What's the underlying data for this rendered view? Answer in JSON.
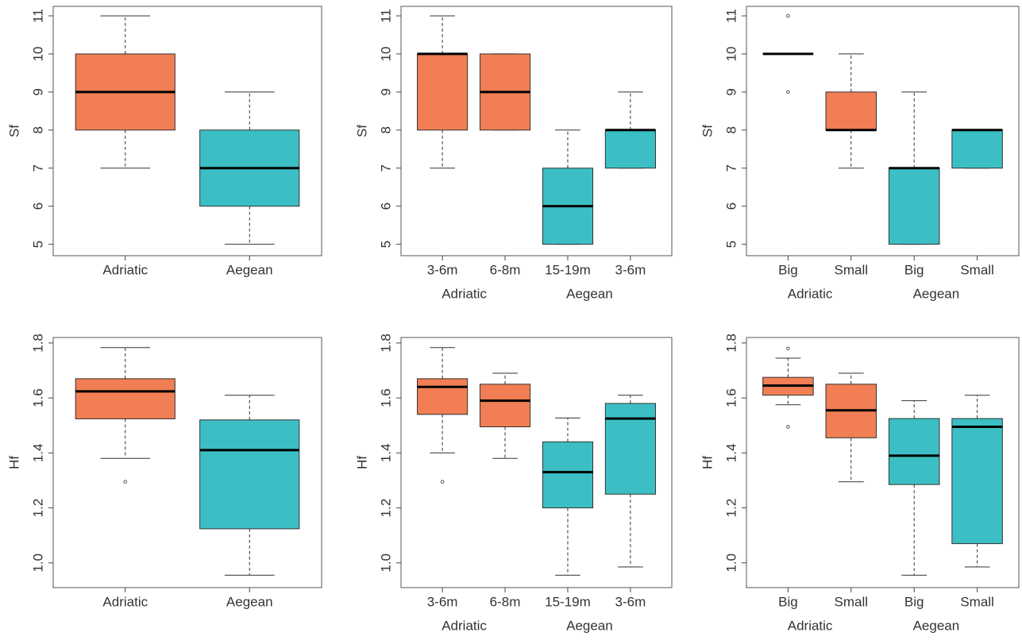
{
  "chart_data": [
    {
      "type": "box",
      "ylabel": "Sf",
      "ylim": [
        4.7,
        11.25
      ],
      "yticks": [
        5,
        6,
        7,
        8,
        9,
        10,
        11
      ],
      "boxes": [
        {
          "label": "Adriatic",
          "color": "#f17e54",
          "min": 7,
          "q1": 8,
          "median": 9,
          "q3": 10,
          "max": 11,
          "outliers": []
        },
        {
          "label": "Aegean",
          "color": "#3bbfc4",
          "min": 5,
          "q1": 6,
          "median": 7,
          "q3": 8,
          "max": 9,
          "outliers": []
        }
      ]
    },
    {
      "type": "box",
      "ylabel": "Sf",
      "ylim": [
        4.7,
        11.25
      ],
      "yticks": [
        5,
        6,
        7,
        8,
        9,
        10,
        11
      ],
      "group_labels": [
        "Adriatic",
        "Aegean"
      ],
      "boxes": [
        {
          "label": "3-6m",
          "color": "#f17e54",
          "min": 7,
          "q1": 8,
          "median": 10,
          "q3": 10,
          "max": 11,
          "outliers": []
        },
        {
          "label": "6-8m",
          "color": "#f17e54",
          "min": 8,
          "q1": 8,
          "median": 9,
          "q3": 10,
          "max": 10,
          "outliers": []
        },
        {
          "label": "15-19m",
          "color": "#3bbfc4",
          "min": 5,
          "q1": 5,
          "median": 6,
          "q3": 7,
          "max": 8,
          "outliers": []
        },
        {
          "label": "3-6m",
          "color": "#3bbfc4",
          "min": 7,
          "q1": 7,
          "median": 8,
          "q3": 8,
          "max": 9,
          "outliers": []
        }
      ]
    },
    {
      "type": "box",
      "ylabel": "Sf",
      "ylim": [
        4.7,
        11.25
      ],
      "yticks": [
        5,
        6,
        7,
        8,
        9,
        10,
        11
      ],
      "group_labels": [
        "Adriatic",
        "Aegean"
      ],
      "boxes": [
        {
          "label": "Big",
          "color": "#f17e54",
          "min": 10,
          "q1": 10,
          "median": 10,
          "q3": 10,
          "max": 10,
          "outliers": [
            11,
            9
          ]
        },
        {
          "label": "Small",
          "color": "#f17e54",
          "min": 7,
          "q1": 8,
          "median": 8,
          "q3": 9,
          "max": 10,
          "outliers": []
        },
        {
          "label": "Big",
          "color": "#3bbfc4",
          "min": 5,
          "q1": 5,
          "median": 7,
          "q3": 7,
          "max": 9,
          "outliers": []
        },
        {
          "label": "Small",
          "color": "#3bbfc4",
          "min": 7,
          "q1": 7,
          "median": 8,
          "q3": 8,
          "max": 8,
          "outliers": []
        }
      ]
    },
    {
      "type": "box",
      "ylabel": "Hf",
      "ylim": [
        0.91,
        1.82
      ],
      "yticks": [
        {
          "value": 1,
          "label": "1.0"
        },
        1.2,
        1.4,
        1.6,
        1.8
      ],
      "boxes": [
        {
          "label": "Adriatic",
          "color": "#f17e54",
          "min": 1.38,
          "q1": 1.524,
          "median": 1.624,
          "q3": 1.67,
          "max": 1.783,
          "outliers": [
            1.295
          ]
        },
        {
          "label": "Aegean",
          "color": "#3bbfc4",
          "min": 0.955,
          "q1": 1.124,
          "median": 1.41,
          "q3": 1.52,
          "max": 1.61,
          "outliers": []
        }
      ]
    },
    {
      "type": "box",
      "ylabel": "Hf",
      "ylim": [
        0.91,
        1.82
      ],
      "yticks": [
        {
          "value": 1,
          "label": "1.0"
        },
        1.2,
        1.4,
        1.6,
        1.8
      ],
      "group_labels": [
        "Adriatic",
        "Aegean"
      ],
      "boxes": [
        {
          "label": "3-6m",
          "color": "#f17e54",
          "min": 1.4,
          "q1": 1.54,
          "median": 1.64,
          "q3": 1.67,
          "max": 1.783,
          "outliers": [
            1.295
          ]
        },
        {
          "label": "6-8m",
          "color": "#f17e54",
          "min": 1.38,
          "q1": 1.495,
          "median": 1.59,
          "q3": 1.65,
          "max": 1.69,
          "outliers": []
        },
        {
          "label": "15-19m",
          "color": "#3bbfc4",
          "min": 0.955,
          "q1": 1.2,
          "median": 1.33,
          "q3": 1.44,
          "max": 1.527,
          "outliers": []
        },
        {
          "label": "3-6m",
          "color": "#3bbfc4",
          "min": 0.985,
          "q1": 1.25,
          "median": 1.525,
          "q3": 1.58,
          "max": 1.61,
          "outliers": []
        }
      ]
    },
    {
      "type": "box",
      "ylabel": "Hf",
      "ylim": [
        0.91,
        1.82
      ],
      "yticks": [
        {
          "value": 1,
          "label": "1.0"
        },
        1.2,
        1.4,
        1.6,
        1.8
      ],
      "group_labels": [
        "Adriatic",
        "Aegean"
      ],
      "boxes": [
        {
          "label": "Big",
          "color": "#f17e54",
          "min": 1.575,
          "q1": 1.61,
          "median": 1.645,
          "q3": 1.675,
          "max": 1.745,
          "outliers": [
            1.78,
            1.495
          ]
        },
        {
          "label": "Small",
          "color": "#f17e54",
          "min": 1.295,
          "q1": 1.455,
          "median": 1.555,
          "q3": 1.65,
          "max": 1.69,
          "outliers": []
        },
        {
          "label": "Big",
          "color": "#3bbfc4",
          "min": 0.955,
          "q1": 1.285,
          "median": 1.39,
          "q3": 1.525,
          "max": 1.59,
          "outliers": []
        },
        {
          "label": "Small",
          "color": "#3bbfc4",
          "min": 0.985,
          "q1": 1.07,
          "median": 1.495,
          "q3": 1.525,
          "max": 1.61,
          "outliers": []
        }
      ]
    }
  ]
}
